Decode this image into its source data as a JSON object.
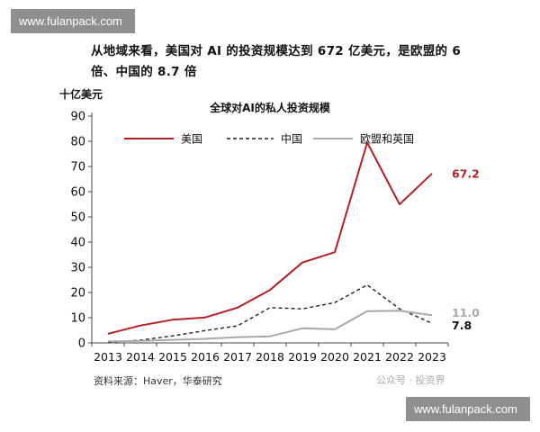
{
  "watermarks": {
    "top": "www.fulanpack.com",
    "bottom": "www.fulanpack.com"
  },
  "headline": "从地域来看，美国对 AI 的投资规模达到 672 亿美元，是欧盟的 6 倍、中国的 8.7 倍",
  "source": "资料来源：Haver，华泰研究",
  "corner_mark": "公众号 · 投资界",
  "chart_data": {
    "type": "line",
    "title": "全球对AI的私人投资规模",
    "ylabel": "十亿美元",
    "xlabel": "",
    "x": [
      "2013",
      "2014",
      "2015",
      "2016",
      "2017",
      "2018",
      "2019",
      "2020",
      "2021",
      "2022",
      "2023"
    ],
    "ylim": [
      0,
      90
    ],
    "yticks": [
      0,
      10,
      20,
      30,
      40,
      50,
      60,
      70,
      80,
      90
    ],
    "grid": false,
    "legend_position": "top",
    "series": [
      {
        "name": "美国",
        "style": "solid",
        "color": "#b52025",
        "values": [
          3.6,
          6.9,
          9.2,
          10.1,
          14.0,
          21.0,
          31.9,
          36.0,
          79.5,
          55.0,
          67.2
        ]
      },
      {
        "name": "中国",
        "style": "dashed",
        "color": "#222222",
        "values": [
          0.3,
          1.1,
          2.8,
          4.9,
          6.8,
          14.0,
          13.5,
          16.0,
          23.0,
          13.5,
          7.8
        ]
      },
      {
        "name": "欧盟和英国",
        "style": "solid",
        "color": "#a9a9a9",
        "values": [
          0.6,
          0.8,
          1.2,
          1.6,
          2.3,
          2.6,
          5.8,
          5.4,
          12.6,
          12.8,
          11.0
        ]
      }
    ],
    "end_labels": [
      {
        "text": "67.2",
        "color": "#b52025"
      },
      {
        "text": "11.0",
        "color": "#a9a9a9"
      },
      {
        "text": "7.8",
        "color": "#111111"
      }
    ]
  }
}
